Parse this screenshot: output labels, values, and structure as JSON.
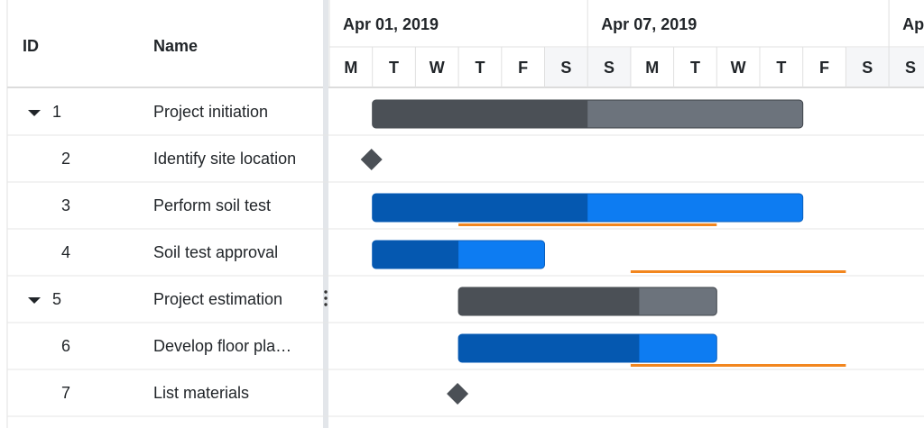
{
  "grid": {
    "columns": [
      "ID",
      "Name"
    ]
  },
  "timeline": {
    "weeks": [
      {
        "label": "Apr 01, 2019",
        "days": 6
      },
      {
        "label": "Apr 07, 2019",
        "days": 7
      },
      {
        "label": "Ap",
        "days": 1
      }
    ],
    "days": [
      "M",
      "T",
      "W",
      "T",
      "F",
      "S",
      "S",
      "M",
      "T",
      "W",
      "T",
      "F",
      "S",
      "S"
    ]
  },
  "tasks": [
    {
      "id": 1,
      "name": "Project initiation",
      "type": "summary",
      "expanded": true,
      "start": 1,
      "duration": 10,
      "progress": 50
    },
    {
      "id": 2,
      "name": "Identify site location",
      "type": "milestone",
      "start": 1
    },
    {
      "id": 3,
      "name": "Perform soil test",
      "type": "task",
      "start": 1,
      "duration": 10,
      "progress": 50,
      "baseline_start": 3,
      "baseline_duration": 6
    },
    {
      "id": 4,
      "name": "Soil test approval",
      "type": "task",
      "start": 1,
      "duration": 4,
      "progress": 50,
      "baseline_start": 7,
      "baseline_duration": 5
    },
    {
      "id": 5,
      "name": "Project estimation",
      "type": "summary",
      "expanded": true,
      "start": 3,
      "duration": 6,
      "progress": 70
    },
    {
      "id": 6,
      "name": "Develop floor pla…",
      "type": "task",
      "start": 3,
      "duration": 6,
      "progress": 70,
      "baseline_start": 7,
      "baseline_duration": 5
    },
    {
      "id": 7,
      "name": "List materials",
      "type": "milestone",
      "start": 3
    }
  ]
}
